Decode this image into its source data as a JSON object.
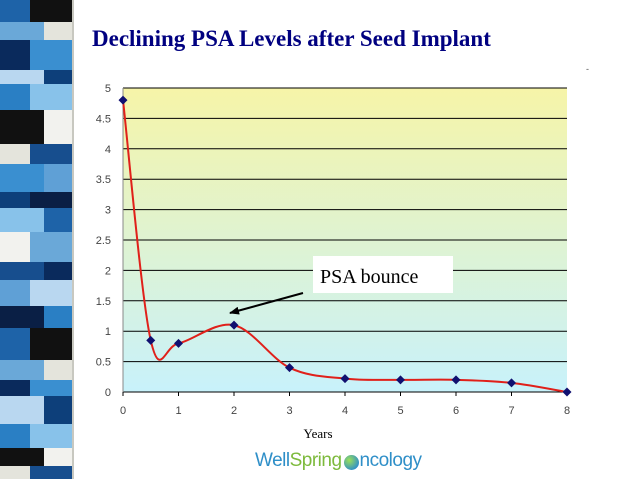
{
  "slide": {
    "title": "Declining PSA Levels after Seed Implant",
    "logo": {
      "part1": "Well",
      "part2": "Spring",
      "part3": "ncology"
    }
  },
  "colors": {
    "title": "#000080",
    "line": "#e0201a",
    "marker": "#101070",
    "plot_top": "#f6f4a8",
    "plot_bottom": "#c8f2fb"
  },
  "chart_data": {
    "type": "scatter",
    "title": "Declining PSA Levels after Seed Implant",
    "xlabel": "Years",
    "ylabel": "",
    "xlim": [
      0,
      8
    ],
    "ylim": [
      0,
      5
    ],
    "x_ticks": [
      "0",
      "1",
      "2",
      "3",
      "4",
      "5",
      "6",
      "7",
      "8"
    ],
    "y_ticks": [
      "0",
      "0.5",
      "1",
      "1.5",
      "2",
      "2.5",
      "3",
      "3.5",
      "4",
      "4.5",
      "5"
    ],
    "grid": true,
    "series": [
      {
        "name": "PSA",
        "x": [
          0,
          0.5,
          1,
          2,
          3,
          4,
          5,
          6,
          7,
          8
        ],
        "y": [
          4.8,
          0.85,
          0.8,
          1.1,
          0.4,
          0.22,
          0.2,
          0.2,
          0.15,
          0.0
        ]
      }
    ],
    "annotations": [
      {
        "text": "PSA bounce",
        "points_to": {
          "x": 2,
          "y": 1.1
        }
      }
    ]
  }
}
